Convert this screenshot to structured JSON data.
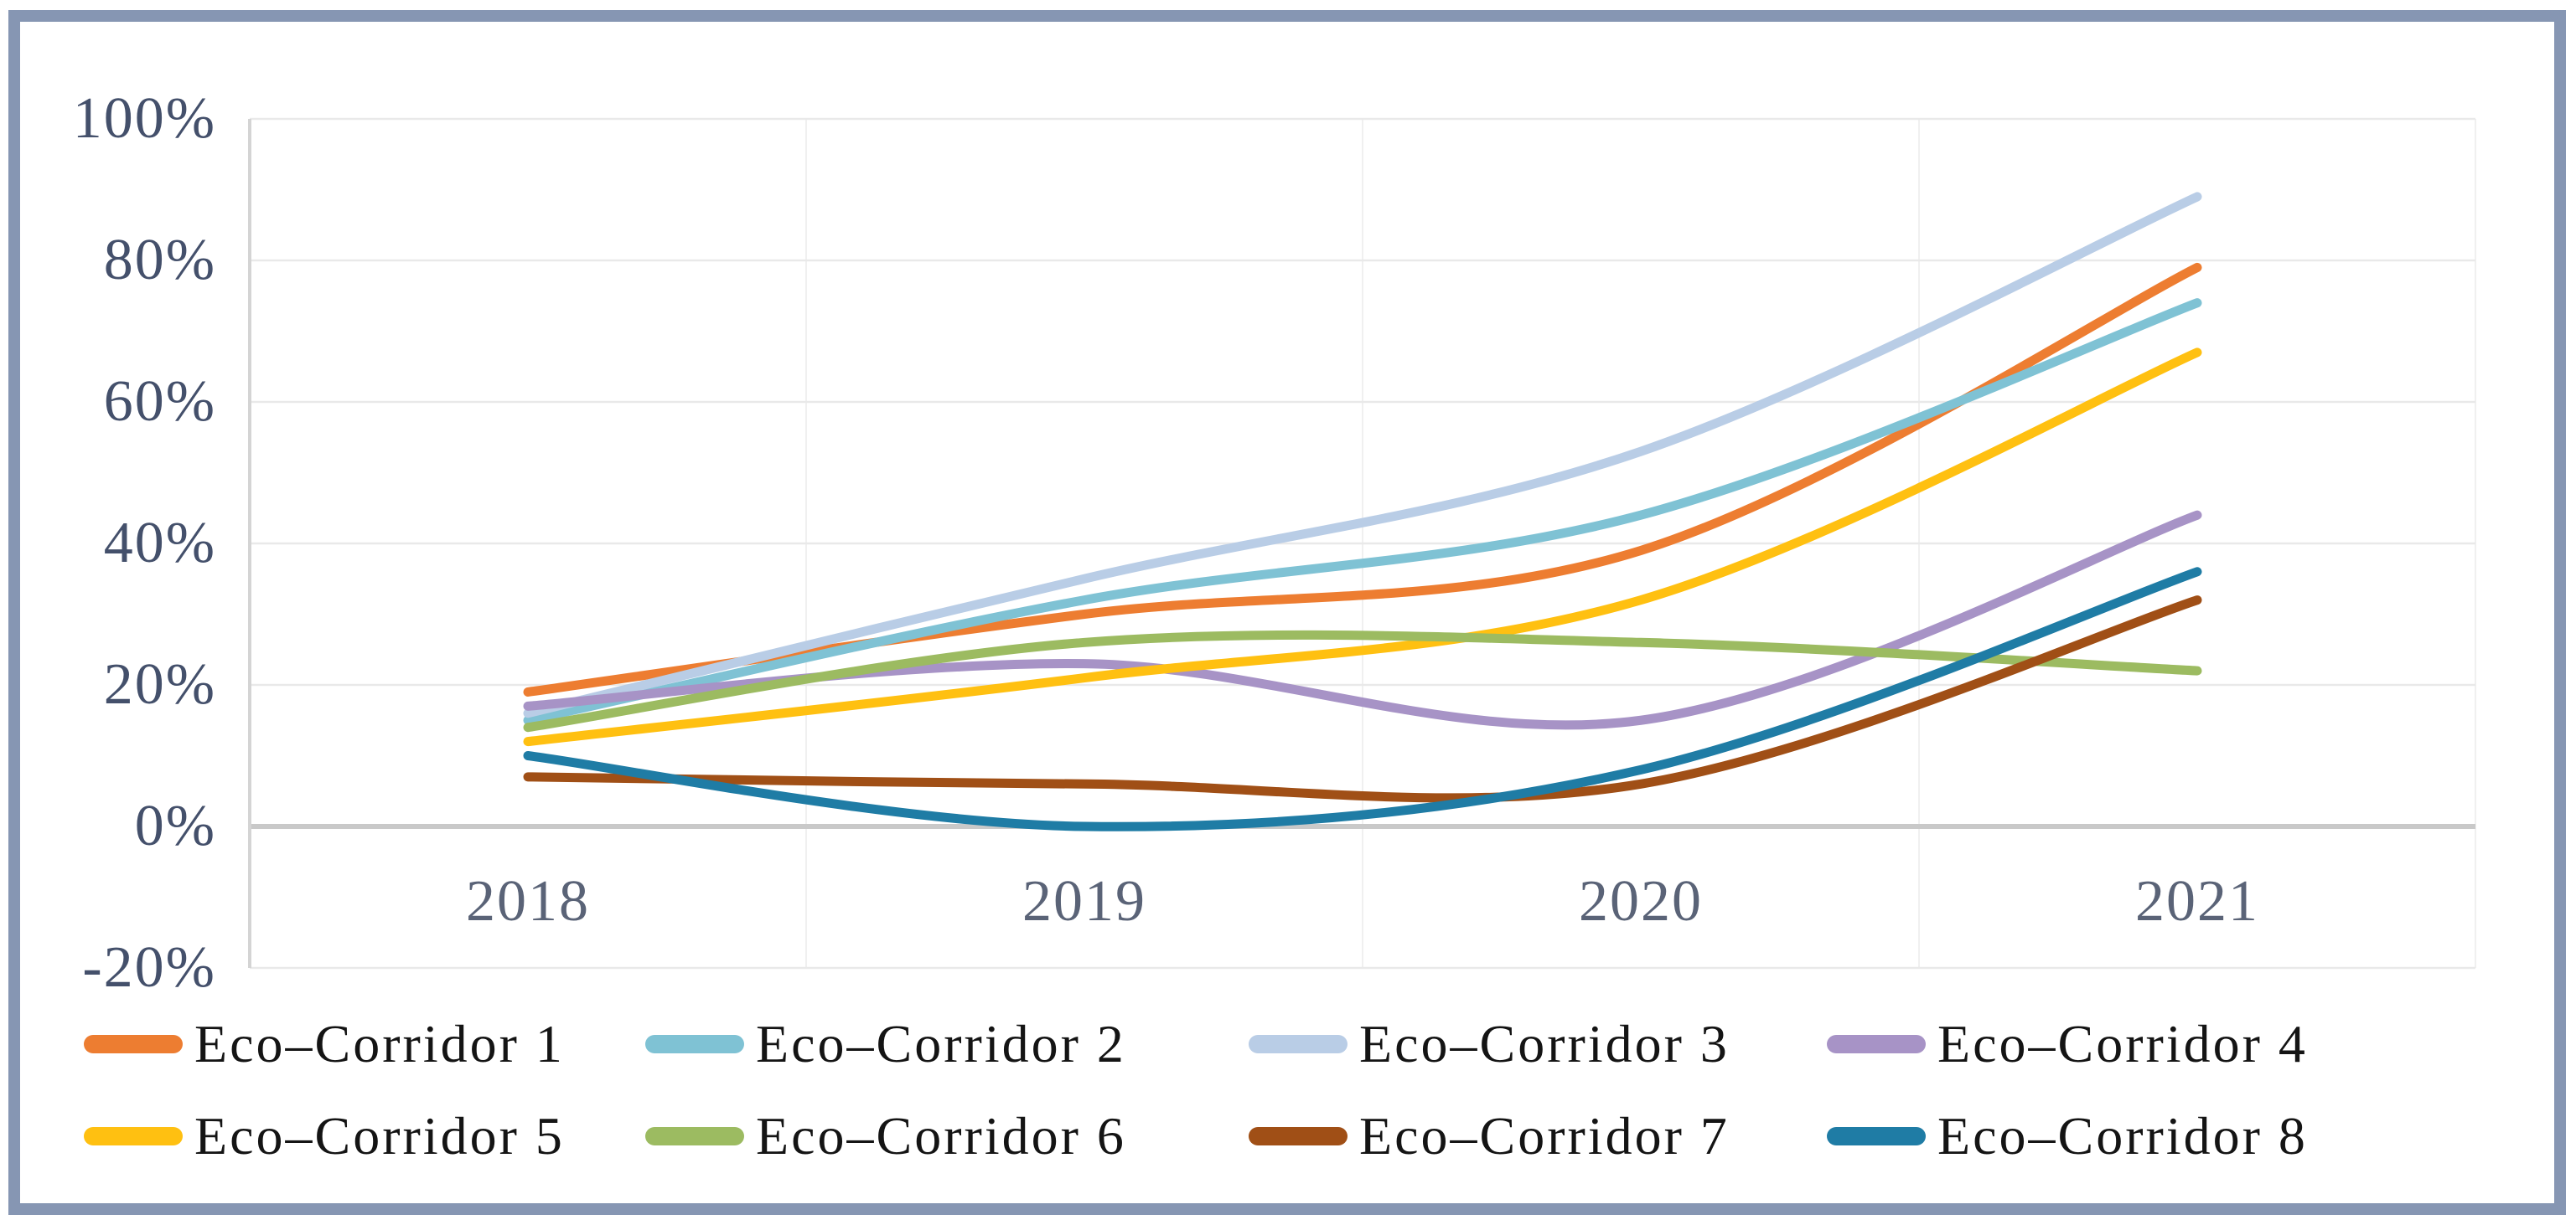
{
  "frame": {
    "border_color": "#8696B3"
  },
  "chart_data": {
    "type": "line",
    "smooth": true,
    "grid": true,
    "legend_position": "bottom",
    "x": [
      2018,
      2019,
      2020,
      2021
    ],
    "x_labels": [
      "2018",
      "2019",
      "2020",
      "2021"
    ],
    "y_ticks": [
      "100%",
      "80%",
      "60%",
      "40%",
      "20%",
      "0%",
      "-20%"
    ],
    "y_tick_values": [
      100,
      80,
      60,
      40,
      20,
      0,
      -20
    ],
    "ylim": [
      -20,
      100
    ],
    "ylabel": "",
    "xlabel": "",
    "series": [
      {
        "name": "Eco–Corridor 1",
        "color": "#ED7D31",
        "values": [
          19,
          30,
          39,
          79
        ]
      },
      {
        "name": "Eco–Corridor 2",
        "color": "#7FC2D4",
        "values": [
          15,
          32,
          44,
          74
        ]
      },
      {
        "name": "Eco–Corridor 3",
        "color": "#B9CDE6",
        "values": [
          16,
          35,
          53,
          89
        ]
      },
      {
        "name": "Eco–Corridor 4",
        "color": "#A793C6",
        "values": [
          17,
          23,
          15,
          44
        ]
      },
      {
        "name": "Eco–Corridor 5",
        "color": "#FFC011",
        "values": [
          12,
          21,
          32,
          67
        ]
      },
      {
        "name": "Eco–Corridor 6",
        "color": "#9CBB61",
        "values": [
          14,
          26,
          26,
          22
        ]
      },
      {
        "name": "Eco–Corridor 7",
        "color": "#A04F16",
        "values": [
          7,
          6,
          6,
          32
        ]
      },
      {
        "name": "Eco–Corridor 8",
        "color": "#1F7CA5",
        "values": [
          10,
          0,
          8,
          36
        ]
      }
    ],
    "axis_colors": {
      "gridline": "#E9E9E9",
      "zero_line": "#C9C9C9",
      "left_axis": "#D4D4D4",
      "category_line": "#F0F0F0"
    }
  }
}
